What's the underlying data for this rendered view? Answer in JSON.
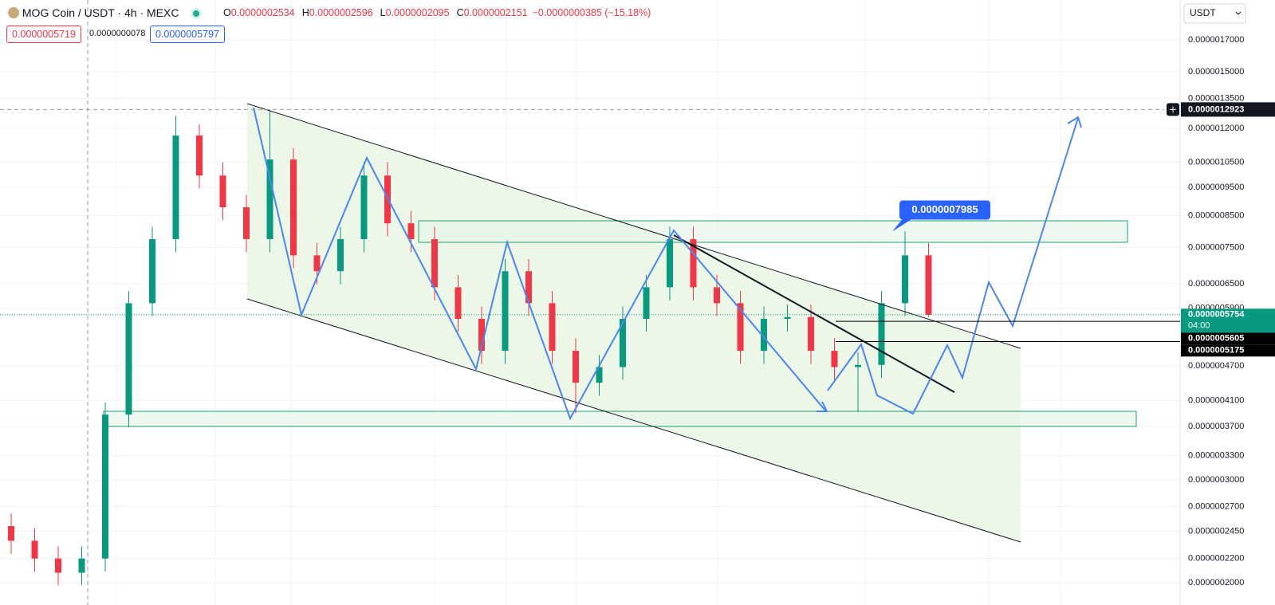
{
  "chart_data": {
    "type": "candlestick",
    "title": "MOG Coin / USDT · 4h · MEXC",
    "legend_ohlc": [
      {
        "key": "O",
        "text": "0.0000002534"
      },
      {
        "key": "H",
        "text": "0.0000002596"
      },
      {
        "key": "L",
        "text": "0.0000002095"
      },
      {
        "key": "C",
        "text": "0.0000002151"
      }
    ],
    "legend_change": "−0.0000000385 (−15.18%)",
    "order_boxes": [
      "0.0000005719",
      "0.0000000078",
      "0.0000005797"
    ],
    "currency": "USDT",
    "log_scale": true,
    "up_color": "#089981",
    "down_color": "#f23645",
    "categories": [
      null,
      null,
      null,
      null,
      null,
      null,
      null,
      null,
      null,
      null,
      null,
      null,
      null,
      null,
      null,
      null,
      null,
      null,
      null,
      null,
      null,
      null,
      null,
      null,
      null,
      null,
      null,
      null,
      null,
      null,
      null,
      null,
      null,
      null,
      null,
      null,
      null,
      null,
      null,
      null
    ],
    "open": [
      2.5e-07,
      2.36e-07,
      2.2e-07,
      2.08e-07,
      2.2e-07,
      3.88e-07,
      6.02e-07,
      7.75e-07,
      1.166e-06,
      9.96e-07,
      8.79e-07,
      7.75e-07,
      1.061e-06,
      7.27e-07,
      6.83e-07,
      7.75e-07,
      9.96e-07,
      8.25e-07,
      7.75e-07,
      6.41e-07,
      5.66e-07,
      4.99e-07,
      6.83e-07,
      6.02e-07,
      4.99e-07,
      4.4e-07,
      4.68e-07,
      5.66e-07,
      6.41e-07,
      7.75e-07,
      6.41e-07,
      6.02e-07,
      4.99e-07,
      5.66e-07,
      5.7e-07,
      4.99e-07,
      4.68e-07,
      4.72e-07,
      6.02e-07,
      7.27e-07
    ],
    "high": [
      2.63e-07,
      2.48e-07,
      2.31e-07,
      2.31e-07,
      4.07e-07,
      6.32e-07,
      8.14e-07,
      1.26e-06,
      1.22e-06,
      1.05e-06,
      9.23e-07,
      1.29e-06,
      1.11e-06,
      7.63e-07,
      8.14e-07,
      1.05e-06,
      1.05e-06,
      8.66e-07,
      8.14e-07,
      6.73e-07,
      5.94e-07,
      7.17e-07,
      7.17e-07,
      6.32e-07,
      5.24e-07,
      4.91e-07,
      5.94e-07,
      6.73e-07,
      8.14e-07,
      8.14e-07,
      6.73e-07,
      6.32e-07,
      5.94e-07,
      5.99e-07,
      5.99e-07,
      5.24e-07,
      4.96e-07,
      6.32e-07,
      7.99e-07,
      7.63e-07
    ],
    "low": [
      2.24e-07,
      2.09e-07,
      1.98e-07,
      1.98e-07,
      2.09e-07,
      3.69e-07,
      5.72e-07,
      7.36e-07,
      9.46e-07,
      8.35e-07,
      7.36e-07,
      7.36e-07,
      6.91e-07,
      6.49e-07,
      6.49e-07,
      7.36e-07,
      7.84e-07,
      7.36e-07,
      6.09e-07,
      5.38e-07,
      4.74e-07,
      4.74e-07,
      5.72e-07,
      4.74e-07,
      3.9e-07,
      4.18e-07,
      4.45e-07,
      5.38e-07,
      6.09e-07,
      6.09e-07,
      5.72e-07,
      4.74e-07,
      4.74e-07,
      5.38e-07,
      4.74e-07,
      4.45e-07,
      3.92e-07,
      4.48e-07,
      5.72e-07,
      5.7e-07
    ],
    "close": [
      2.36e-07,
      2.2e-07,
      2.08e-07,
      2.2e-07,
      3.88e-07,
      6.02e-07,
      7.75e-07,
      1.166e-06,
      9.96e-07,
      8.79e-07,
      7.75e-07,
      1.061e-06,
      7.27e-07,
      6.83e-07,
      7.75e-07,
      9.96e-07,
      8.25e-07,
      7.75e-07,
      6.41e-07,
      5.66e-07,
      4.99e-07,
      6.83e-07,
      6.02e-07,
      4.99e-07,
      4.4e-07,
      4.68e-07,
      5.66e-07,
      6.41e-07,
      7.75e-07,
      6.41e-07,
      6.02e-07,
      4.99e-07,
      5.66e-07,
      5.7e-07,
      4.99e-07,
      4.68e-07,
      4.72e-07,
      6.02e-07,
      7.27e-07,
      5.75e-07
    ],
    "ylim": [
      1.92e-07,
      1.99e-06
    ],
    "yticks": [
      {
        "value": 1.7e-06,
        "label": "0.0000017000"
      },
      {
        "value": 1.5e-06,
        "label": "0.0000015000"
      },
      {
        "value": 1.35e-06,
        "label": "0.0000013500"
      },
      {
        "value": 1.2e-06,
        "label": "0.0000012000"
      },
      {
        "value": 1.05e-06,
        "label": "0.0000010500"
      },
      {
        "value": 9.5e-07,
        "label": "0.0000009500"
      },
      {
        "value": 8.5e-07,
        "label": "0.0000008500"
      },
      {
        "value": 7.5e-07,
        "label": "0.0000007500"
      },
      {
        "value": 6.5e-07,
        "label": "0.0000006500"
      },
      {
        "value": 5.9e-07,
        "label": "0.0000005900"
      },
      {
        "value": 4.7e-07,
        "label": "0.0000004700"
      },
      {
        "value": 4.1e-07,
        "label": "0.0000004100"
      },
      {
        "value": 3.7e-07,
        "label": "0.0000003700"
      },
      {
        "value": 3.3e-07,
        "label": "0.0000003300"
      },
      {
        "value": 3e-07,
        "label": "0.0000003000"
      },
      {
        "value": 2.7e-07,
        "label": "0.0000002700"
      },
      {
        "value": 2.45e-07,
        "label": "0.0000002450"
      },
      {
        "value": 2.2e-07,
        "label": "0.0000002200"
      },
      {
        "value": 2e-07,
        "label": "0.0000002000"
      }
    ],
    "price_lines": [
      {
        "value": 5.754e-07,
        "label": "0.0000005754",
        "color": "#089981",
        "sub": "04:00"
      },
      {
        "value": 5.605e-07,
        "label": "0.0000005605",
        "color": "#000000"
      },
      {
        "value": 5.175e-07,
        "label": "0.0000005175",
        "color": "#000000"
      }
    ],
    "crosshair": {
      "value": 1.2923e-06,
      "label": "0.0000012923"
    },
    "callout": {
      "value": 7.985e-07,
      "label": "0.0000007985",
      "color": "#2962ff"
    }
  }
}
